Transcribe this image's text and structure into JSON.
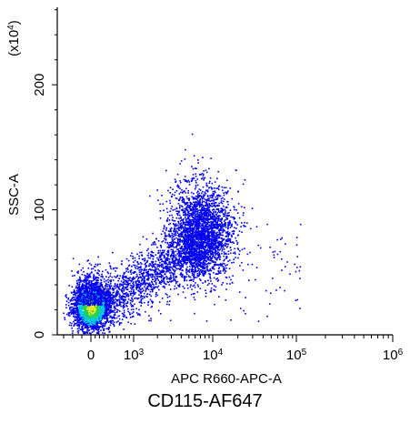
{
  "chart_data": {
    "type": "scatter",
    "plot_style": "flow cytometry pseudocolor dot plot",
    "xlabel": "APC R660-APC-A",
    "ylabel": "SSC-A",
    "y_multiplier_label": "(x10",
    "y_multiplier_exponent": "4",
    "y_multiplier_close": ")",
    "x_scale": "biexponential",
    "y_scale": "linear",
    "xlim": [
      -300,
      1000000
    ],
    "ylim": [
      0,
      262
    ],
    "x_ticks": [
      {
        "base": "0",
        "exp": "",
        "value": 0
      },
      {
        "base": "10",
        "exp": "3",
        "value": 1000
      },
      {
        "base": "10",
        "exp": "4",
        "value": 10000
      },
      {
        "base": "10",
        "exp": "5",
        "value": 100000
      },
      {
        "base": "10",
        "exp": "6",
        "value": 1000000
      }
    ],
    "y_ticks": [
      {
        "label": "0",
        "value": 0
      },
      {
        "label": "100",
        "value": 100
      },
      {
        "label": "200",
        "value": 200
      }
    ],
    "populations": [
      {
        "name": "",
        "center_x": 0,
        "center_y": 20,
        "spread_x": 120,
        "spread_y": 8,
        "density": "high",
        "color_scale": "blue-cyan-green-yellow"
      },
      {
        "name": "",
        "center_x": 7000,
        "center_y": 82,
        "spread_x": 5000,
        "spread_y": 18,
        "density": "medium",
        "color": "#0000ee"
      }
    ],
    "grid": false,
    "legend": "none",
    "caption": "CD115-AF647",
    "colors": {
      "dots": "#0000ee",
      "dense_low": "#00c8e6",
      "dense_mid": "#28d14b",
      "dense_high": "#e8e82a",
      "axis": "#000000"
    }
  }
}
